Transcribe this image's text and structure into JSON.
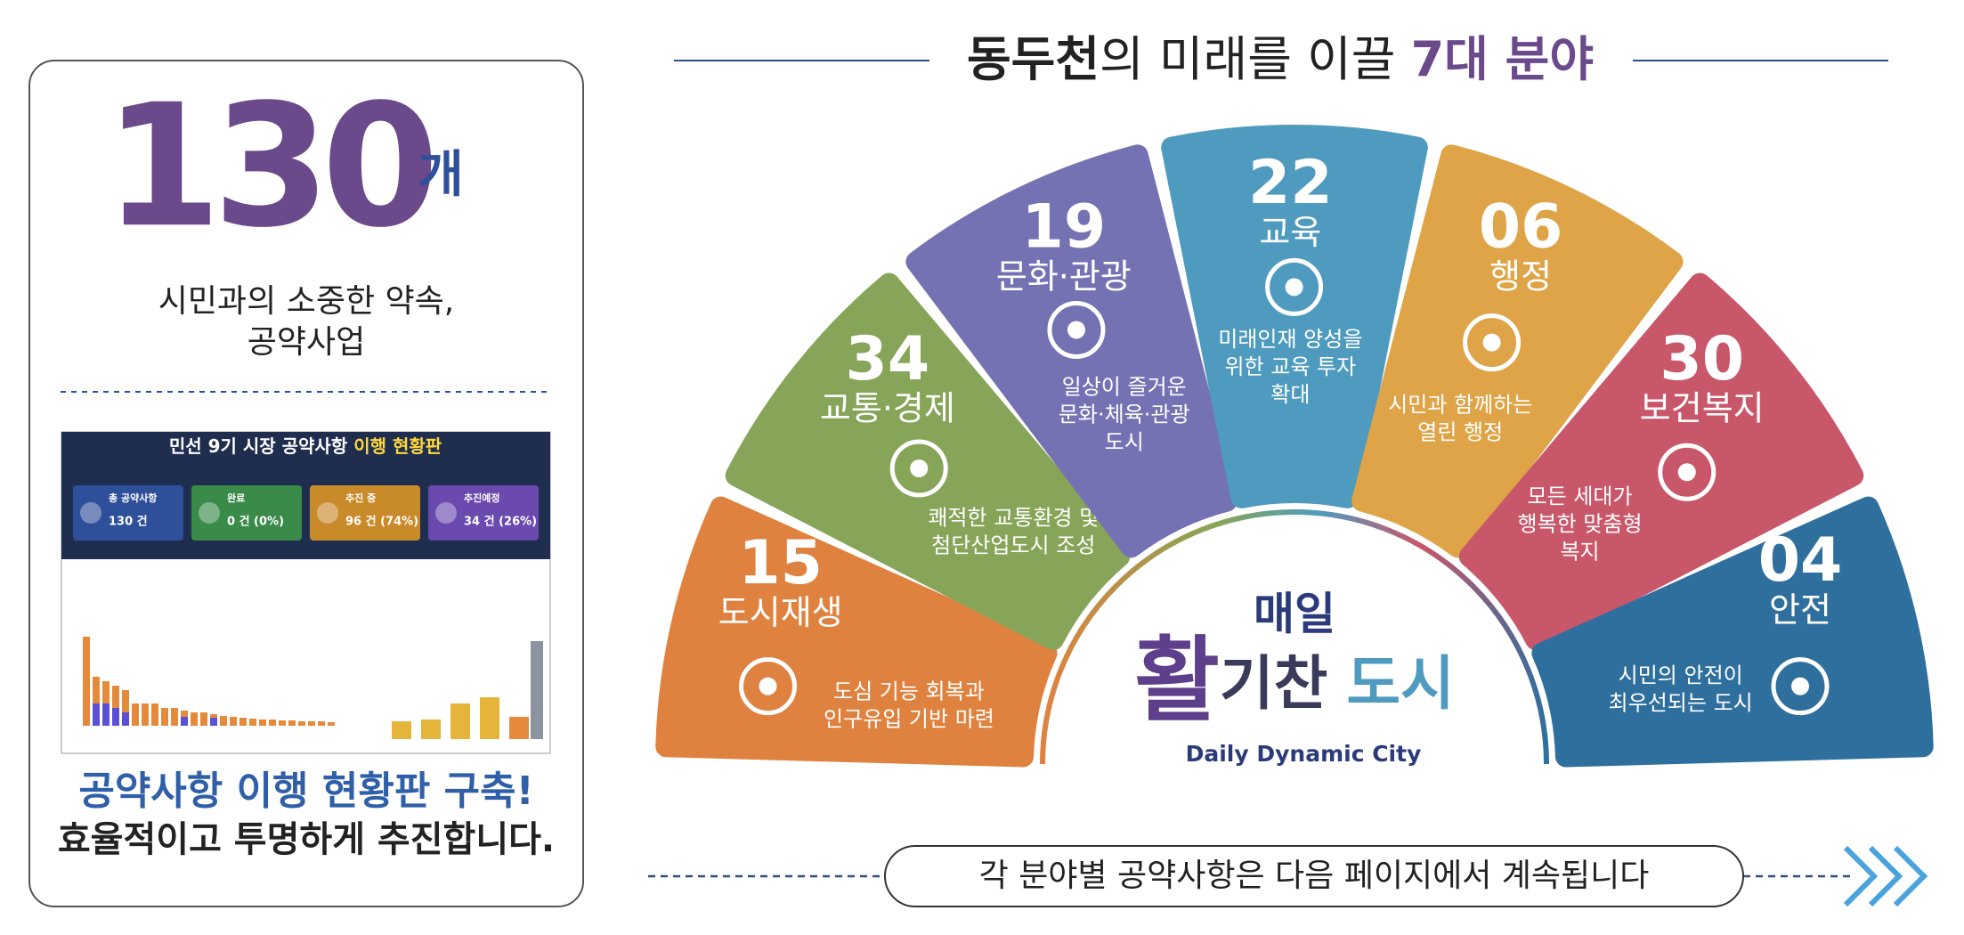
{
  "title": {
    "highlight": "동두천",
    "middle": "의 미래를 이끌",
    "accent": "7대 분야"
  },
  "left_panel": {
    "count": "130",
    "unit": "개",
    "subtitle": [
      "시민과의 소중한 약속,",
      "공약사업"
    ],
    "dashboard": {
      "title": "민선 9기 시장 공약사항",
      "title_accent": "이행 현황판",
      "cards": [
        {
          "label": "총 공약사항",
          "value": "130 건"
        },
        {
          "label": "완료",
          "value": "0 건 (0%)"
        },
        {
          "label": "추진 중",
          "value": "96 건 (74%)"
        },
        {
          "label": "추진예정",
          "value": "34 건 (26%)"
        }
      ]
    },
    "headline": "공약사항 이행 현황판 구축!",
    "tagline": "효율적이고 투명하게 추진합니다."
  },
  "sectors": [
    {
      "number": "15",
      "name": "도시재생",
      "description": [
        "도심 기능 회복과",
        "인구유입 기반 마련"
      ],
      "color": "#e0823f"
    },
    {
      "number": "34",
      "name": "교통·경제",
      "description": [
        "쾌적한 교통환경 및",
        "첨단산업도시 조성"
      ],
      "color": "#86a558"
    },
    {
      "number": "19",
      "name": "문화·관광",
      "description": [
        "일상이 즐거운",
        "문화·체육·관광",
        "도시"
      ],
      "color": "#7572b3"
    },
    {
      "number": "22",
      "name": "교육",
      "description": [
        "미래인재 양성을",
        "위한 교육 투자",
        "확대"
      ],
      "color": "#4f9bbf"
    },
    {
      "number": "06",
      "name": "행정",
      "description": [
        "시민과 함께하는",
        "열린 행정"
      ],
      "color": "#dea447"
    },
    {
      "number": "30",
      "name": "보건복지",
      "description": [
        "모든 세대가",
        "행복한 맞춤형",
        "복지"
      ],
      "color": "#c9576a"
    },
    {
      "number": "04",
      "name": "안전",
      "description": [
        "시민의 안전이",
        "최우선되는 도시"
      ],
      "color": "#2f6f9e"
    }
  ],
  "center": {
    "top": "매일",
    "big": "활",
    "middle": "기찬",
    "end": "도시",
    "english": "Daily Dynamic City"
  },
  "footer": "각 분야별 공약사항은 다음 페이지에서 계속됩니다"
}
